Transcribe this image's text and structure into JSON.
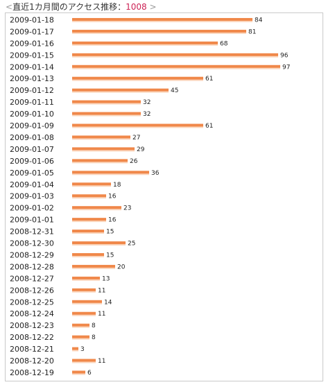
{
  "header": {
    "left_chevron": "<",
    "title": "直近1カ月間のアクセス推移：",
    "total": "1008",
    "right_chevron": ">"
  },
  "colors": {
    "bar": "#f0884a",
    "bar_shadow": "#fbd6bd",
    "total_text": "#cc2255"
  },
  "chart_data": {
    "type": "bar",
    "orientation": "horizontal",
    "title": "",
    "xlabel": "",
    "ylabel": "",
    "xlim": [
      0,
      97
    ],
    "grid": false,
    "categories": [
      "2009-01-18",
      "2009-01-17",
      "2009-01-16",
      "2009-01-15",
      "2009-01-14",
      "2009-01-13",
      "2009-01-12",
      "2009-01-11",
      "2009-01-10",
      "2009-01-09",
      "2009-01-08",
      "2009-01-07",
      "2009-01-06",
      "2009-01-05",
      "2009-01-04",
      "2009-01-03",
      "2009-01-02",
      "2009-01-01",
      "2008-12-31",
      "2008-12-30",
      "2008-12-29",
      "2008-12-28",
      "2008-12-27",
      "2008-12-26",
      "2008-12-25",
      "2008-12-24",
      "2008-12-23",
      "2008-12-22",
      "2008-12-21",
      "2008-12-20",
      "2008-12-19"
    ],
    "values": [
      84,
      81,
      68,
      96,
      97,
      61,
      45,
      32,
      32,
      61,
      27,
      29,
      26,
      36,
      18,
      16,
      23,
      16,
      15,
      25,
      15,
      20,
      13,
      11,
      14,
      11,
      8,
      8,
      3,
      11,
      6
    ]
  }
}
